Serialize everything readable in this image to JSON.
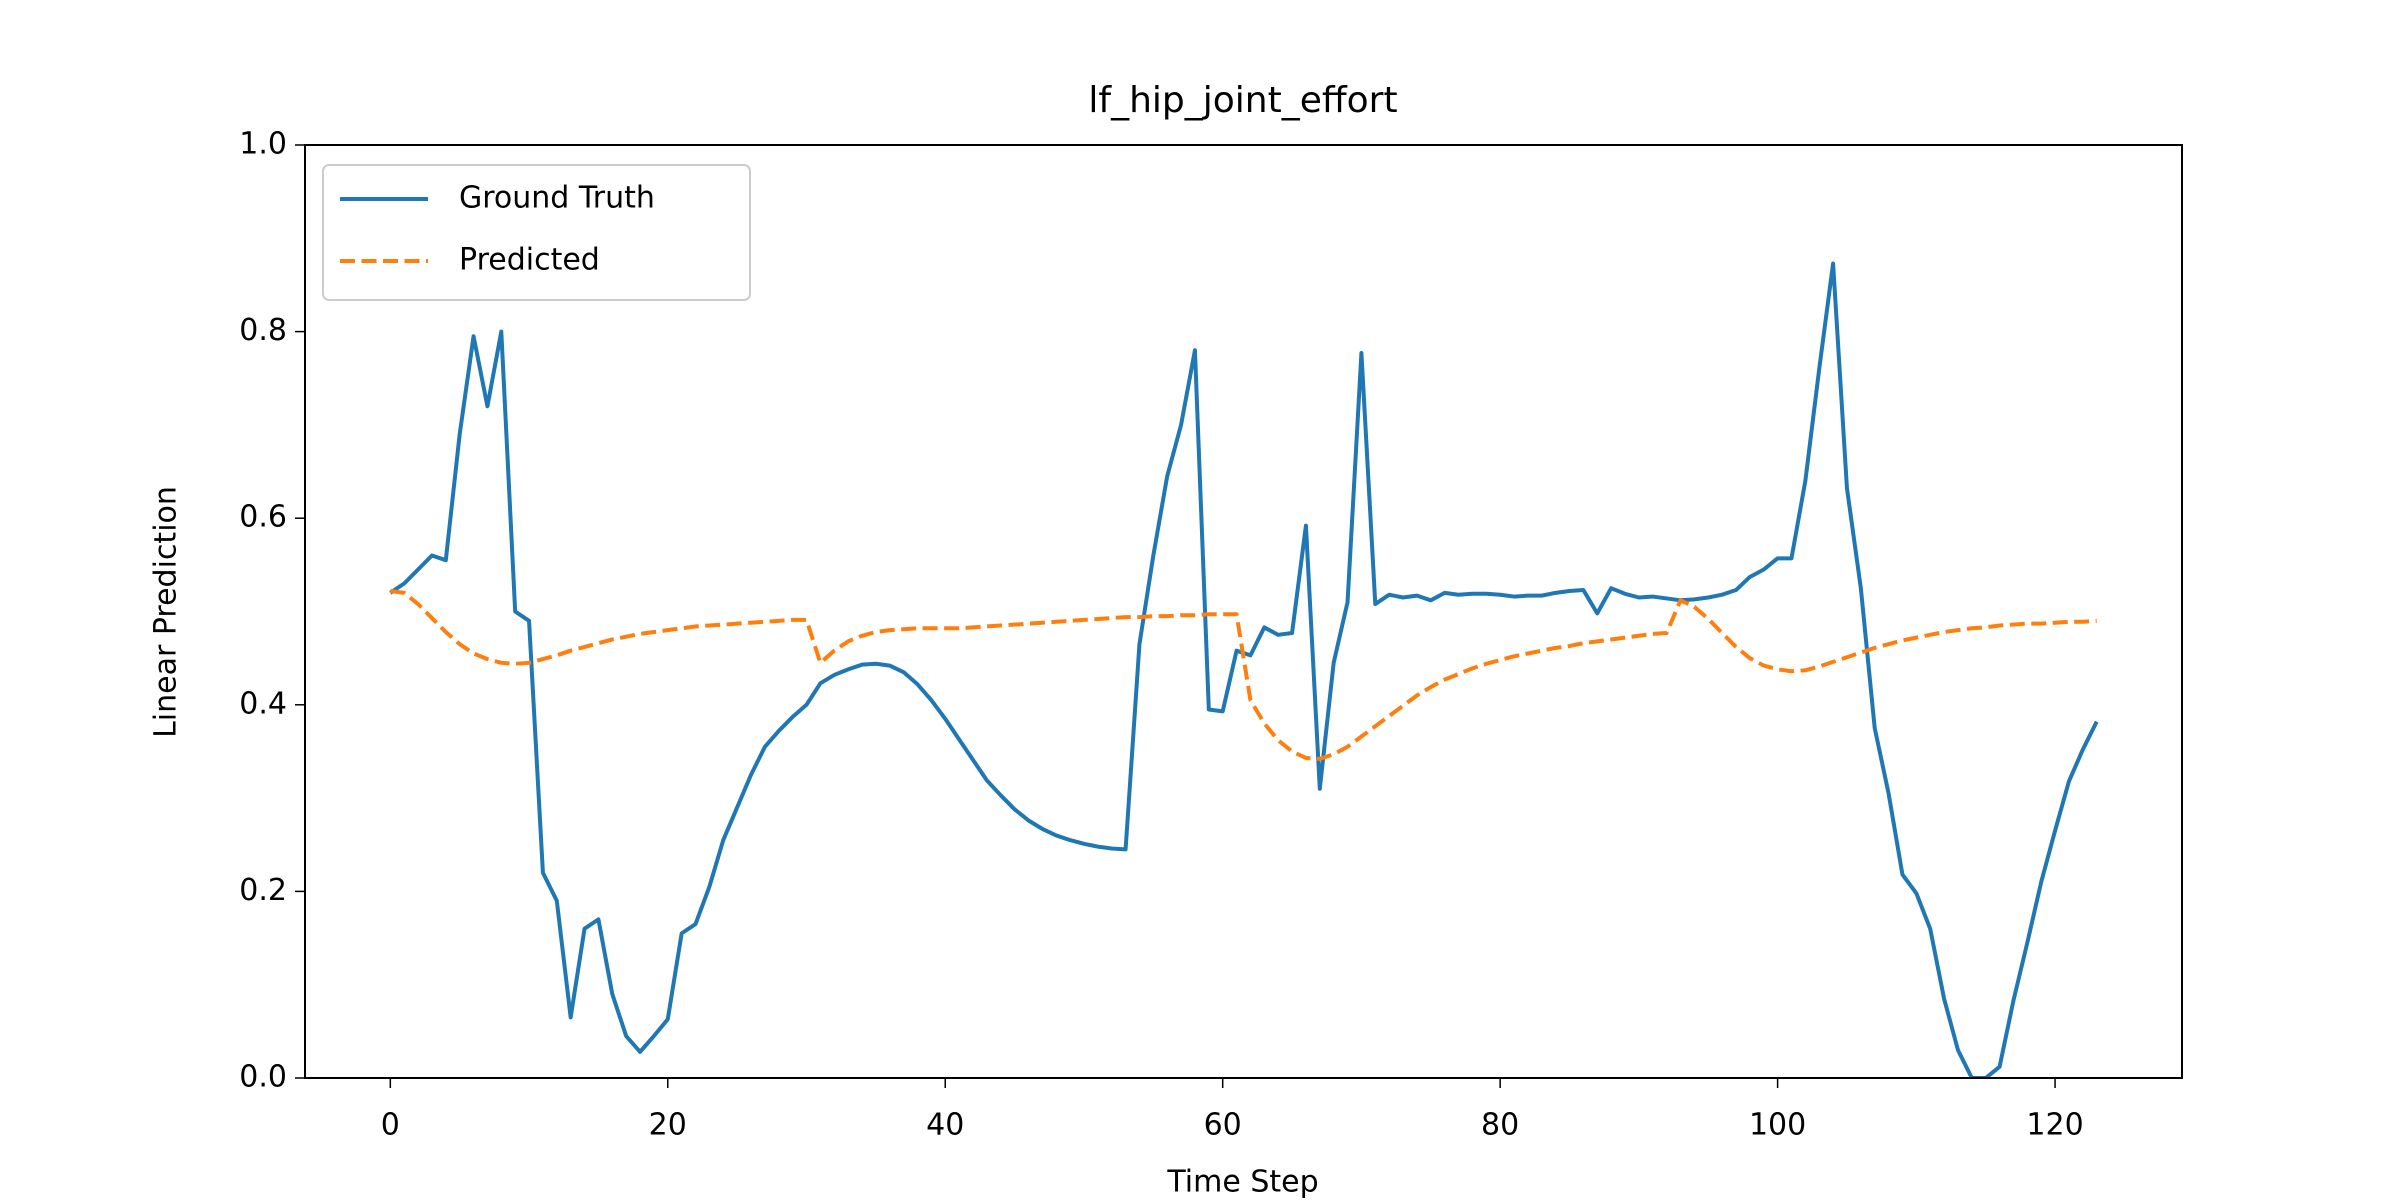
{
  "chart_data": {
    "type": "line",
    "title": "lf_hip_joint_effort",
    "xlabel": "Time Step",
    "ylabel": "Linear Prediction",
    "x": [
      0,
      1,
      2,
      3,
      4,
      5,
      6,
      7,
      8,
      9,
      10,
      11,
      12,
      13,
      14,
      15,
      16,
      17,
      18,
      19,
      20,
      21,
      22,
      23,
      24,
      25,
      26,
      27,
      28,
      29,
      30,
      31,
      32,
      33,
      34,
      35,
      36,
      37,
      38,
      39,
      40,
      41,
      42,
      43,
      44,
      45,
      46,
      47,
      48,
      49,
      50,
      51,
      52,
      53,
      54,
      55,
      56,
      57,
      58,
      59,
      60,
      61,
      62,
      63,
      64,
      65,
      66,
      67,
      68,
      69,
      70,
      71,
      72,
      73,
      74,
      75,
      76,
      77,
      78,
      79,
      80,
      81,
      82,
      83,
      84,
      85,
      86,
      87,
      88,
      89,
      90,
      91,
      92,
      93,
      94,
      95,
      96,
      97,
      98,
      99,
      100,
      101,
      102,
      103,
      104,
      105,
      106,
      107,
      108,
      109,
      110,
      111,
      112,
      113,
      114,
      115,
      116,
      117,
      118,
      119,
      120,
      121,
      122,
      123
    ],
    "series": [
      {
        "name": "Ground Truth",
        "color": "#1f77b4",
        "dashed": false,
        "values": [
          0.52,
          0.53,
          0.545,
          0.56,
          0.555,
          0.69,
          0.795,
          0.72,
          0.8,
          0.5,
          0.49,
          0.22,
          0.19,
          0.065,
          0.16,
          0.17,
          0.09,
          0.045,
          0.028,
          0.045,
          0.063,
          0.155,
          0.165,
          0.205,
          0.255,
          0.29,
          0.325,
          0.355,
          0.372,
          0.387,
          0.4,
          0.423,
          0.432,
          0.438,
          0.443,
          0.444,
          0.442,
          0.435,
          0.422,
          0.405,
          0.385,
          0.363,
          0.341,
          0.319,
          0.303,
          0.288,
          0.276,
          0.267,
          0.26,
          0.255,
          0.251,
          0.248,
          0.246,
          0.245,
          0.465,
          0.56,
          0.645,
          0.7,
          0.78,
          0.395,
          0.393,
          0.458,
          0.453,
          0.483,
          0.475,
          0.477,
          0.592,
          0.31,
          0.445,
          0.51,
          0.777,
          0.508,
          0.518,
          0.515,
          0.517,
          0.512,
          0.52,
          0.518,
          0.519,
          0.519,
          0.518,
          0.516,
          0.517,
          0.517,
          0.52,
          0.522,
          0.523,
          0.498,
          0.525,
          0.519,
          0.515,
          0.516,
          0.514,
          0.512,
          0.513,
          0.515,
          0.518,
          0.523,
          0.537,
          0.545,
          0.557,
          0.557,
          0.64,
          0.76,
          0.873,
          0.632,
          0.525,
          0.375,
          0.305,
          0.218,
          0.198,
          0.16,
          0.085,
          0.03,
          0.0,
          0.0,
          0.012,
          0.083,
          0.145,
          0.21,
          0.265,
          0.318,
          0.352,
          0.382
        ]
      },
      {
        "name": "Predicted",
        "color": "#ff7f0e",
        "dashed": true,
        "values": [
          0.522,
          0.52,
          0.508,
          0.493,
          0.478,
          0.465,
          0.455,
          0.449,
          0.445,
          0.444,
          0.445,
          0.449,
          0.453,
          0.458,
          0.462,
          0.466,
          0.47,
          0.473,
          0.476,
          0.478,
          0.48,
          0.482,
          0.484,
          0.485,
          0.486,
          0.487,
          0.488,
          0.489,
          0.49,
          0.491,
          0.491,
          0.445,
          0.458,
          0.468,
          0.474,
          0.478,
          0.48,
          0.481,
          0.482,
          0.482,
          0.482,
          0.482,
          0.483,
          0.484,
          0.485,
          0.486,
          0.487,
          0.488,
          0.489,
          0.49,
          0.491,
          0.492,
          0.493,
          0.494,
          0.494,
          0.495,
          0.495,
          0.496,
          0.496,
          0.497,
          0.497,
          0.497,
          0.405,
          0.38,
          0.362,
          0.35,
          0.343,
          0.342,
          0.347,
          0.355,
          0.366,
          0.377,
          0.388,
          0.399,
          0.41,
          0.419,
          0.427,
          0.433,
          0.439,
          0.444,
          0.448,
          0.452,
          0.455,
          0.458,
          0.461,
          0.463,
          0.466,
          0.468,
          0.47,
          0.472,
          0.474,
          0.476,
          0.477,
          0.512,
          0.505,
          0.492,
          0.477,
          0.462,
          0.45,
          0.442,
          0.438,
          0.436,
          0.437,
          0.441,
          0.446,
          0.451,
          0.456,
          0.461,
          0.465,
          0.469,
          0.472,
          0.475,
          0.478,
          0.48,
          0.482,
          0.483,
          0.485,
          0.486,
          0.487,
          0.487,
          0.488,
          0.489,
          0.489,
          0.49
        ]
      }
    ],
    "xlim": [
      -6.15,
      129.15
    ],
    "xticks": [
      0,
      20,
      40,
      60,
      80,
      100,
      120
    ],
    "ylim": [
      0,
      1
    ],
    "yticks": [
      {
        "value": 0,
        "label": "0.0"
      },
      {
        "value": 0.2,
        "label": "0.2"
      },
      {
        "value": 0.4,
        "label": "0.4"
      },
      {
        "value": 0.6,
        "label": "0.6"
      },
      {
        "value": 0.8,
        "label": "0.8"
      },
      {
        "value": 1,
        "label": "1.0"
      }
    ],
    "grid": false,
    "legend": "upper left"
  }
}
